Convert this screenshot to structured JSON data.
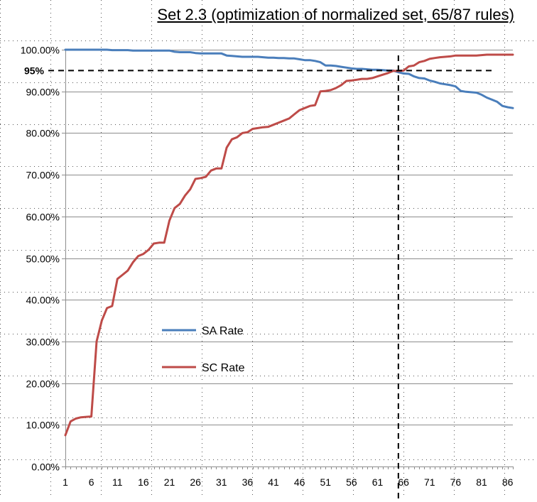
{
  "chart_data": {
    "type": "line",
    "title": "Set 2.3 (optimization of normalized set, 65/87 rules)",
    "xlabel": "",
    "ylabel": "",
    "x_ticks": [
      1,
      6,
      11,
      16,
      21,
      26,
      31,
      36,
      41,
      46,
      51,
      56,
      61,
      66,
      71,
      76,
      81,
      86
    ],
    "xlim": [
      1,
      87
    ],
    "y_ticks": [
      "0.00%",
      "10.00%",
      "20.00%",
      "30.00%",
      "40.00%",
      "50.00%",
      "60.00%",
      "70.00%",
      "80.00%",
      "90.00%",
      "100.00%"
    ],
    "ylim": [
      0,
      100
    ],
    "grid": "horizontal",
    "legend_position": "center-left",
    "threshold_y": 95,
    "threshold_label": "95%",
    "threshold_x": 65,
    "series": [
      {
        "name": "SA Rate",
        "color": "#4a7ebb",
        "values": [
          100,
          100,
          100,
          100,
          100,
          100,
          100,
          100,
          100,
          99.9,
          99.9,
          99.9,
          99.9,
          99.8,
          99.8,
          99.8,
          99.8,
          99.8,
          99.8,
          99.8,
          99.8,
          99.5,
          99.4,
          99.4,
          99.4,
          99.2,
          99.1,
          99.1,
          99.1,
          99.1,
          99.1,
          98.6,
          98.5,
          98.4,
          98.3,
          98.3,
          98.3,
          98.3,
          98.2,
          98.1,
          98.1,
          98.0,
          98.0,
          97.9,
          97.9,
          97.7,
          97.5,
          97.5,
          97.3,
          97.0,
          96.2,
          96.2,
          96.1,
          95.9,
          95.7,
          95.5,
          95.4,
          95.4,
          95.3,
          95.2,
          95.2,
          95.1,
          95.0,
          95.0,
          94.6,
          94.3,
          94.2,
          93.6,
          93.2,
          93.1,
          92.6,
          92.3,
          91.9,
          91.7,
          91.5,
          91.2,
          90.1,
          89.9,
          89.8,
          89.7,
          89.2,
          88.5,
          88.0,
          87.5,
          86.5,
          86.2,
          86.0
        ]
      },
      {
        "name": "SC Rate",
        "color": "#be4b48",
        "values": [
          7.5,
          10.8,
          11.5,
          11.8,
          11.9,
          12.0,
          30.0,
          35.0,
          38.0,
          38.5,
          45.0,
          46.0,
          47.0,
          49.0,
          50.5,
          51.0,
          52.0,
          53.5,
          53.7,
          53.7,
          59.0,
          62.0,
          63.0,
          65.0,
          66.5,
          69.0,
          69.2,
          69.5,
          71.0,
          71.5,
          71.5,
          76.5,
          78.5,
          79.0,
          80.0,
          80.2,
          81.0,
          81.2,
          81.4,
          81.5,
          82.0,
          82.5,
          83.0,
          83.5,
          84.5,
          85.5,
          86.0,
          86.5,
          86.7,
          90.0,
          90.1,
          90.3,
          90.8,
          91.5,
          92.5,
          92.6,
          92.8,
          93.0,
          93.0,
          93.2,
          93.6,
          94.0,
          94.4,
          94.9,
          94.9,
          95.0,
          96.0,
          96.2,
          97.0,
          97.3,
          97.8,
          98.0,
          98.2,
          98.3,
          98.4,
          98.6,
          98.6,
          98.6,
          98.6,
          98.6,
          98.7,
          98.8,
          98.8,
          98.8,
          98.8,
          98.8,
          98.8
        ]
      }
    ]
  }
}
